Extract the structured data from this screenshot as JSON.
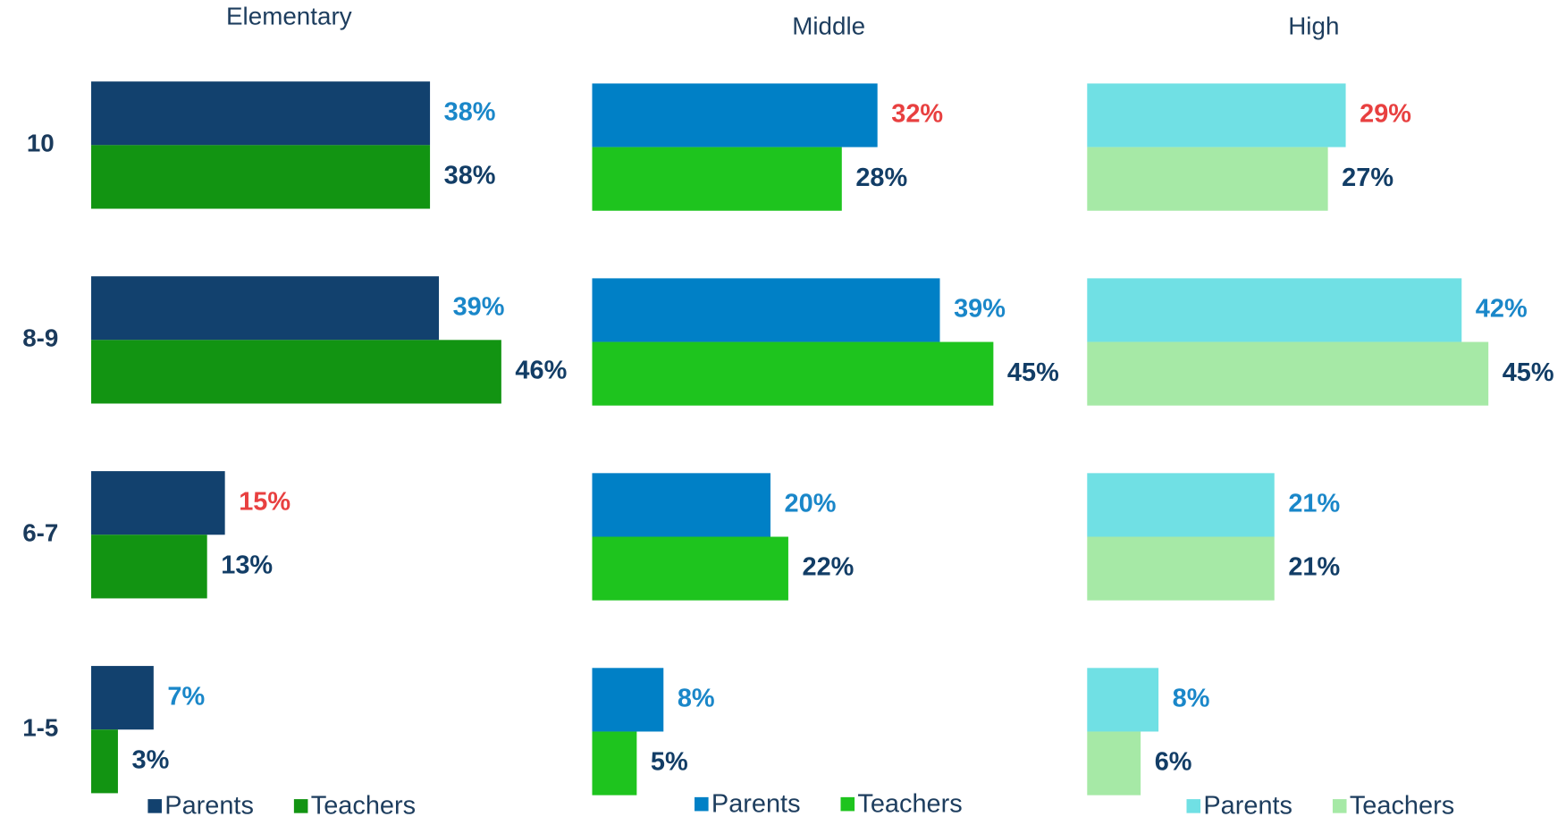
{
  "chart_data": [
    {
      "type": "barh",
      "title": "Elementary",
      "categories": [
        "10",
        "8-9",
        "6-7",
        "1-5"
      ],
      "xlim": [
        0,
        50
      ],
      "series": [
        {
          "name": "Parents",
          "color": "#12416e",
          "values": [
            38,
            39,
            15,
            7
          ],
          "value_labels": [
            "38%",
            "39%",
            "15%",
            "7%"
          ],
          "label_colors": [
            "#1a87c9",
            "#1a87c9",
            "#e84040",
            "#1a87c9"
          ]
        },
        {
          "name": "Teachers",
          "color": "#129412",
          "values": [
            38,
            46,
            13,
            3
          ],
          "value_labels": [
            "38%",
            "46%",
            "13%",
            "3%"
          ],
          "label_colors": [
            "#123d66",
            "#123d66",
            "#123d66",
            "#123d66"
          ]
        }
      ]
    },
    {
      "type": "barh",
      "title": "Middle",
      "xlim": [
        0,
        50
      ],
      "series": [
        {
          "name": "Parents",
          "color": "#0080c6",
          "values": [
            32,
            39,
            20,
            8
          ],
          "value_labels": [
            "32%",
            "39%",
            "20%",
            "8%"
          ],
          "label_colors": [
            "#e84040",
            "#1a87c9",
            "#1a87c9",
            "#1a87c9"
          ]
        },
        {
          "name": "Teachers",
          "color": "#1ec41e",
          "values": [
            28,
            45,
            22,
            5
          ],
          "value_labels": [
            "28%",
            "45%",
            "22%",
            "5%"
          ],
          "label_colors": [
            "#123d66",
            "#123d66",
            "#123d66",
            "#123d66"
          ]
        }
      ]
    },
    {
      "type": "barh",
      "title": "High",
      "xlim": [
        0,
        50
      ],
      "series": [
        {
          "name": "Parents",
          "color": "#70e0e4",
          "values": [
            29,
            42,
            21,
            8
          ],
          "value_labels": [
            "29%",
            "42%",
            "21%",
            "8%"
          ],
          "label_colors": [
            "#e84040",
            "#1a87c9",
            "#1a87c9",
            "#1a87c9"
          ]
        },
        {
          "name": "Teachers",
          "color": "#a6e9a6",
          "values": [
            27,
            45,
            21,
            6
          ],
          "value_labels": [
            "27%",
            "45%",
            "21%",
            "6%"
          ],
          "label_colors": [
            "#123d66",
            "#123d66",
            "#123d66",
            "#123d66"
          ]
        }
      ]
    }
  ]
}
